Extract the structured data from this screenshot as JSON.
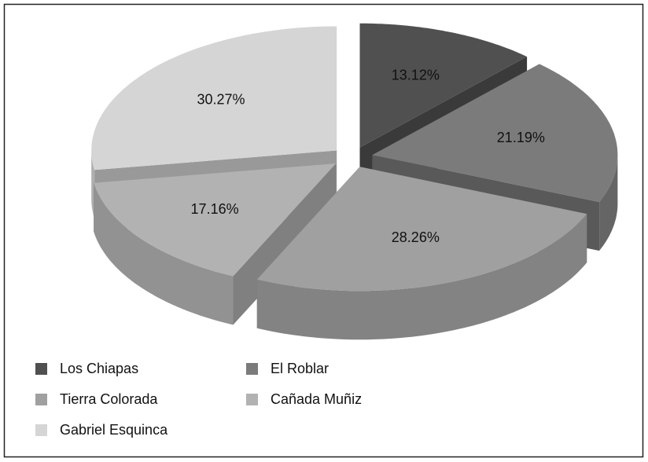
{
  "chart_data": {
    "type": "pie3d",
    "categories": [
      "Los Chiapas",
      "El Roblar",
      "Tierra Colorada",
      "Cañada Muñiz",
      "Gabriel Esquinca"
    ],
    "values": [
      13.12,
      21.19,
      28.26,
      17.16,
      30.27
    ],
    "value_labels": [
      "13.12%",
      "21.19%",
      "28.26%",
      "17.16%",
      "30.27%"
    ],
    "colors": [
      "#505050",
      "#7b7b7b",
      "#a0a0a0",
      "#b2b2b2",
      "#d5d5d5"
    ],
    "legend": "bottom"
  }
}
